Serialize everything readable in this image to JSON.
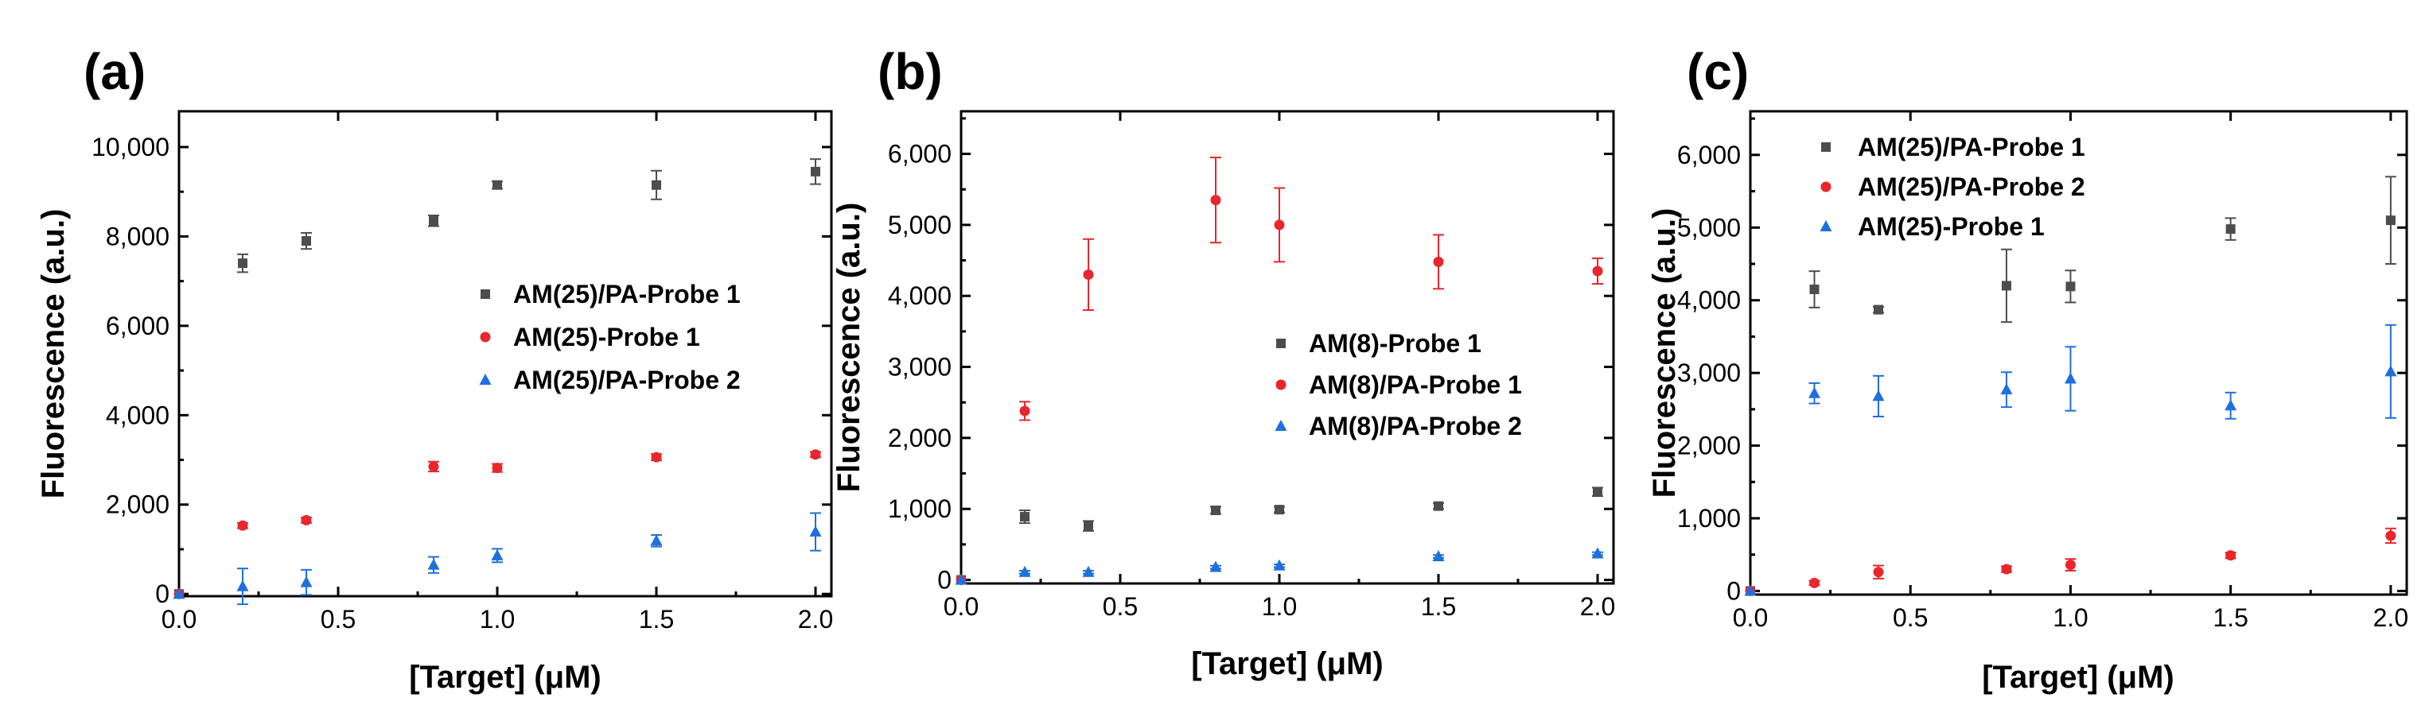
{
  "colors": {
    "black": "#4d4d4d",
    "red": "#e8262b",
    "blue": "#1f6fdd",
    "axis": "#000000"
  },
  "chart_data": [
    {
      "panel": "(a)",
      "type": "scatter",
      "xlabel": "[Target] (μM)",
      "ylabel": "Fluorescence (a.u.)",
      "xlim": [
        0,
        2.05
      ],
      "ylim": [
        -50,
        10800
      ],
      "xticks": [
        0.0,
        0.5,
        1.0,
        1.5,
        2.0
      ],
      "xtick_labels": [
        "0.0",
        "0.5",
        "1.0",
        "1.5",
        "2.0"
      ],
      "yticks": [
        0,
        2000,
        4000,
        6000,
        8000,
        10000
      ],
      "ytick_labels": [
        "0",
        "2,000",
        "4,000",
        "6,000",
        "8,000",
        "10,000"
      ],
      "legend_position": "center-right",
      "series": [
        {
          "name": "AM(25)/PA-Probe 1",
          "marker": "square",
          "color": "#4d4d4d",
          "x": [
            0,
            0.2,
            0.4,
            0.8,
            1.0,
            1.5,
            2.0
          ],
          "y": [
            0,
            7400,
            7900,
            8350,
            9150,
            9150,
            9450
          ],
          "err": [
            0,
            200,
            180,
            120,
            80,
            320,
            280
          ]
        },
        {
          "name": "AM(25)-Probe 1",
          "marker": "circle",
          "color": "#e8262b",
          "x": [
            0,
            0.2,
            0.4,
            0.8,
            1.0,
            1.5,
            2.0
          ],
          "y": [
            0,
            1530,
            1650,
            2850,
            2820,
            3060,
            3120
          ],
          "err": [
            0,
            60,
            60,
            110,
            90,
            70,
            60
          ]
        },
        {
          "name": "AM(25)/PA-Probe 2",
          "marker": "triangle",
          "color": "#1f6fdd",
          "x": [
            0,
            0.2,
            0.4,
            0.8,
            1.0,
            1.5,
            2.0
          ],
          "y": [
            0,
            170,
            260,
            650,
            860,
            1190,
            1390
          ],
          "err": [
            0,
            400,
            280,
            180,
            150,
            130,
            420
          ]
        }
      ]
    },
    {
      "panel": "(b)",
      "type": "scatter",
      "xlabel": "[Target] (μM)",
      "ylabel": "Fluorescence (a.u.)",
      "xlim": [
        0,
        2.05
      ],
      "ylim": [
        -50,
        6600
      ],
      "xticks": [
        0.0,
        0.5,
        1.0,
        1.5,
        2.0
      ],
      "xtick_labels": [
        "0.0",
        "0.5",
        "1.0",
        "1.5",
        "2.0"
      ],
      "yticks": [
        0,
        1000,
        2000,
        3000,
        4000,
        5000,
        6000
      ],
      "ytick_labels": [
        "0",
        "1,000",
        "2,000",
        "3,000",
        "4,000",
        "5,000",
        "6,000"
      ],
      "legend_position": "center-right",
      "series": [
        {
          "name": "AM(8)-Probe 1",
          "marker": "square",
          "color": "#4d4d4d",
          "x": [
            0,
            0.2,
            0.4,
            0.8,
            1.0,
            1.5,
            2.0
          ],
          "y": [
            0,
            890,
            760,
            980,
            990,
            1040,
            1240
          ],
          "err": [
            0,
            90,
            70,
            50,
            40,
            40,
            60
          ]
        },
        {
          "name": "AM(8)/PA-Probe 1",
          "marker": "circle",
          "color": "#e8262b",
          "x": [
            0,
            0.2,
            0.4,
            0.8,
            1.0,
            1.5,
            2.0
          ],
          "y": [
            0,
            2380,
            4300,
            5350,
            5000,
            4480,
            4350
          ],
          "err": [
            0,
            130,
            500,
            600,
            520,
            380,
            180
          ]
        },
        {
          "name": "AM(8)/PA-Probe 2",
          "marker": "triangle",
          "color": "#1f6fdd",
          "x": [
            0,
            0.2,
            0.4,
            0.8,
            1.0,
            1.5,
            2.0
          ],
          "y": [
            0,
            110,
            110,
            180,
            200,
            330,
            370
          ],
          "err": [
            0,
            20,
            20,
            20,
            20,
            20,
            20
          ]
        }
      ]
    },
    {
      "panel": "(c)",
      "type": "scatter",
      "xlabel": "[Target] (μM)",
      "ylabel": "Fluorescence (a.u.)",
      "xlim": [
        0,
        2.05
      ],
      "ylim": [
        -50,
        6600
      ],
      "xticks": [
        0.0,
        0.5,
        1.0,
        1.5,
        2.0
      ],
      "xtick_labels": [
        "0.0",
        "0.5",
        "1.0",
        "1.5",
        "2.0"
      ],
      "yticks": [
        0,
        1000,
        2000,
        3000,
        4000,
        5000,
        6000
      ],
      "ytick_labels": [
        "0",
        "1,000",
        "2,000",
        "3,000",
        "4,000",
        "5,000",
        "6,000"
      ],
      "legend_position": "top-left",
      "series": [
        {
          "name": "AM(25)/PA-Probe 1",
          "marker": "square",
          "color": "#4d4d4d",
          "x": [
            0,
            0.2,
            0.4,
            0.8,
            1.0,
            1.5,
            2.0
          ],
          "y": [
            0,
            4150,
            3870,
            4200,
            4190,
            4980,
            5100
          ],
          "err": [
            0,
            250,
            40,
            500,
            220,
            150,
            600
          ]
        },
        {
          "name": "AM(25)/PA-Probe 2",
          "marker": "circle",
          "color": "#e8262b",
          "x": [
            0,
            0.2,
            0.4,
            0.8,
            1.0,
            1.5,
            2.0
          ],
          "y": [
            0,
            110,
            260,
            300,
            360,
            490,
            760
          ],
          "err": [
            0,
            30,
            90,
            40,
            80,
            40,
            100
          ]
        },
        {
          "name": "AM(25)-Probe 1",
          "marker": "triangle",
          "color": "#1f6fdd",
          "x": [
            0,
            0.2,
            0.4,
            0.8,
            1.0,
            1.5,
            2.0
          ],
          "y": [
            0,
            2720,
            2680,
            2770,
            2920,
            2550,
            3020
          ],
          "err": [
            0,
            140,
            280,
            240,
            440,
            180,
            640
          ]
        }
      ]
    }
  ]
}
